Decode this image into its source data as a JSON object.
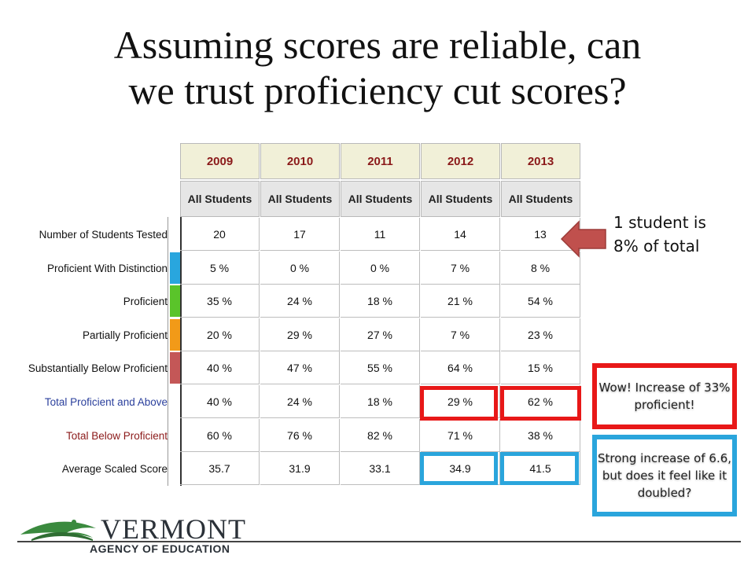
{
  "title": {
    "line1": "Assuming scores are reliable, can",
    "line2": "we trust proficiency cut scores?"
  },
  "table": {
    "years": [
      "2009",
      "2010",
      "2011",
      "2012",
      "2013"
    ],
    "group_label": "All Students",
    "rows": [
      {
        "label": "Number of Students Tested",
        "values": [
          "20",
          "17",
          "11",
          "14",
          "13"
        ],
        "style": "plain",
        "swatch": ""
      },
      {
        "label": "Proficient With Distinction",
        "values": [
          "5 %",
          "0 %",
          "0 %",
          "7 %",
          "8 %"
        ],
        "style": "plain",
        "swatch": "#29a6de"
      },
      {
        "label": "Proficient",
        "values": [
          "35 %",
          "24 %",
          "18 %",
          "21 %",
          "54 %"
        ],
        "style": "plain",
        "swatch": "#5ac42a"
      },
      {
        "label": "Partially Proficient",
        "values": [
          "20 %",
          "29 %",
          "27 %",
          "7 %",
          "23 %"
        ],
        "style": "plain",
        "swatch": "#f29a18"
      },
      {
        "label": "Substantially Below Proficient",
        "values": [
          "40 %",
          "47 %",
          "55 %",
          "64 %",
          "15 %"
        ],
        "style": "plain",
        "swatch": "#c45757"
      },
      {
        "label": "Total Proficient and Above",
        "values": [
          "40 %",
          "24 %",
          "18 %",
          "29 %",
          "62 %"
        ],
        "style": "blue",
        "swatch": ""
      },
      {
        "label": "Total Below Proficient",
        "values": [
          "60 %",
          "76 %",
          "82 %",
          "71 %",
          "38 %"
        ],
        "style": "red",
        "swatch": ""
      },
      {
        "label": "Average Scaled Score",
        "values": [
          "35.7",
          "31.9",
          "33.1",
          "34.9",
          "41.5"
        ],
        "style": "plain",
        "swatch": ""
      }
    ]
  },
  "callouts": {
    "students_line1": "1 student is",
    "students_line2": "8% of total",
    "increase_text": "Wow! Increase of 33% proficient!",
    "score_text": "Strong increase of 6.6, but does it feel like it doubled?"
  },
  "colors": {
    "highlight_red": "#e81818",
    "highlight_blue": "#2aa5dc",
    "arrow": "#c0504d",
    "header_year": "#8b1a1a"
  },
  "logo": {
    "name": "VERMONT",
    "subtitle": "AGENCY OF EDUCATION"
  }
}
